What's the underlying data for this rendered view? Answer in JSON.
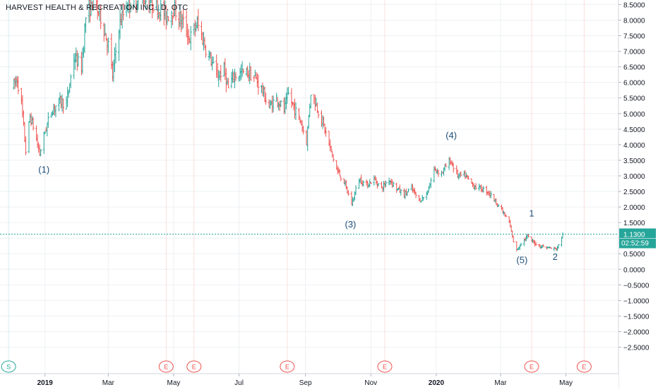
{
  "header": {
    "title": "HARVEST HEALTH & RECREATION INC., D, OTC"
  },
  "price_label": {
    "value": "1.1300",
    "countdown": "02:52:59",
    "color": "#26a69a"
  },
  "colors": {
    "up": "#26a69a",
    "down": "#ef5350",
    "grid": "#eef0f3",
    "axis_text": "#131722",
    "wave_text": "#1e4e79",
    "event_earnings": "#ef5350",
    "event_split": "#26a69a"
  },
  "events": [
    {
      "text": "S",
      "date": "2018-11-28",
      "kind": "split"
    },
    {
      "text": "E",
      "date": "2019-04-24",
      "kind": "earnings"
    },
    {
      "text": "E",
      "date": "2019-05-20",
      "kind": "earnings"
    },
    {
      "text": "E",
      "date": "2019-08-15",
      "kind": "earnings"
    },
    {
      "text": "E",
      "date": "2019-11-14",
      "kind": "earnings"
    },
    {
      "text": "E",
      "date": "2020-03-30",
      "kind": "earnings"
    },
    {
      "text": "E",
      "date": "2020-05-18",
      "kind": "earnings"
    }
  ],
  "chart_data": {
    "type": "bar",
    "style": "ohlc",
    "title": "HARVEST HEALTH & RECREATION INC., D, OTC",
    "y_ticks": [
      "8.5000",
      "8.0000",
      "7.5000",
      "7.0000",
      "6.5000",
      "6.0000",
      "5.5000",
      "5.0000",
      "4.5000",
      "4.0000",
      "3.5000",
      "3.0000",
      "2.5000",
      "2.0000",
      "1.5000",
      "1.0000",
      "0.5000",
      "0.0000",
      "−0.5000",
      "−1.0000",
      "−1.5000",
      "−2.0000",
      "−2.5000"
    ],
    "y_tick_values": [
      8.5,
      8,
      7.5,
      7,
      6.5,
      6,
      5.5,
      5,
      4.5,
      4,
      3.5,
      3,
      2.5,
      2,
      1.5,
      1,
      0.5,
      0,
      -0.5,
      -1,
      -1.5,
      -2,
      -2.5
    ],
    "ylim": [
      -2.85,
      8.6
    ],
    "x_ticks": [
      {
        "label": "2019",
        "date": "2019-01-01",
        "bold": true
      },
      {
        "label": "Mar",
        "date": "2019-03-01"
      },
      {
        "label": "May",
        "date": "2019-05-01"
      },
      {
        "label": "Jul",
        "date": "2019-07-01"
      },
      {
        "label": "Sep",
        "date": "2019-09-01"
      },
      {
        "label": "Nov",
        "date": "2019-11-01"
      },
      {
        "label": "2020",
        "date": "2020-01-01",
        "bold": true
      },
      {
        "label": "Mar",
        "date": "2020-03-01"
      },
      {
        "label": "May",
        "date": "2020-05-01"
      }
    ],
    "xlim": [
      "2018-11-20",
      "2020-06-19"
    ],
    "last_price": 1.13,
    "price_path": [
      [
        "2018-12-03",
        5.9
      ],
      [
        "2018-12-06",
        6.1
      ],
      [
        "2018-12-10",
        5.3
      ],
      [
        "2018-12-14",
        3.8
      ],
      [
        "2018-12-18",
        4.9
      ],
      [
        "2018-12-21",
        4.6
      ],
      [
        "2018-12-27",
        3.7
      ],
      [
        "2018-12-31",
        4.3
      ],
      [
        "2019-01-07",
        5.1
      ],
      [
        "2019-01-15",
        5.4
      ],
      [
        "2019-01-21",
        5.3
      ],
      [
        "2019-01-28",
        6.8
      ],
      [
        "2019-02-04",
        6.5
      ],
      [
        "2019-02-08",
        8.1
      ],
      [
        "2019-02-15",
        8.6
      ],
      [
        "2019-02-22",
        8.1
      ],
      [
        "2019-03-01",
        7.2
      ],
      [
        "2019-03-05",
        6.2
      ],
      [
        "2019-03-11",
        7.8
      ],
      [
        "2019-03-18",
        8.5
      ],
      [
        "2019-03-25",
        8.7
      ],
      [
        "2019-04-01",
        8.7
      ],
      [
        "2019-04-10",
        8.6
      ],
      [
        "2019-04-18",
        8.4
      ],
      [
        "2019-04-24",
        8.1
      ],
      [
        "2019-05-01",
        8.4
      ],
      [
        "2019-05-06",
        8.1
      ],
      [
        "2019-05-10",
        7.9
      ],
      [
        "2019-05-16",
        7.4
      ],
      [
        "2019-05-23",
        7.9
      ],
      [
        "2019-05-31",
        7.1
      ],
      [
        "2019-06-05",
        6.7
      ],
      [
        "2019-06-10",
        6.2
      ],
      [
        "2019-06-17",
        6.4
      ],
      [
        "2019-06-21",
        5.8
      ],
      [
        "2019-06-26",
        6.2
      ],
      [
        "2019-07-03",
        6.3
      ],
      [
        "2019-07-10",
        6.3
      ],
      [
        "2019-07-17",
        6.1
      ],
      [
        "2019-07-22",
        5.8
      ],
      [
        "2019-07-29",
        5.2
      ],
      [
        "2019-08-05",
        5.5
      ],
      [
        "2019-08-12",
        5.1
      ],
      [
        "2019-08-16",
        5.6
      ],
      [
        "2019-08-21",
        5.2
      ],
      [
        "2019-08-28",
        4.7
      ],
      [
        "2019-09-02",
        4.1
      ],
      [
        "2019-09-06",
        5.7
      ],
      [
        "2019-09-12",
        5.2
      ],
      [
        "2019-09-18",
        4.6
      ],
      [
        "2019-09-23",
        4.0
      ],
      [
        "2019-09-30",
        3.2
      ],
      [
        "2019-10-07",
        2.8
      ],
      [
        "2019-10-14",
        2.1
      ],
      [
        "2019-10-21",
        2.9
      ],
      [
        "2019-10-28",
        2.7
      ],
      [
        "2019-11-04",
        2.9
      ],
      [
        "2019-11-11",
        2.6
      ],
      [
        "2019-11-18",
        2.9
      ],
      [
        "2019-11-25",
        2.6
      ],
      [
        "2019-12-02",
        2.4
      ],
      [
        "2019-12-09",
        2.6
      ],
      [
        "2019-12-16",
        2.2
      ],
      [
        "2019-12-23",
        2.4
      ],
      [
        "2019-12-30",
        3.2
      ],
      [
        "2020-01-06",
        3.1
      ],
      [
        "2020-01-14",
        3.5
      ],
      [
        "2020-01-21",
        3.0
      ],
      [
        "2020-01-28",
        3.0
      ],
      [
        "2020-02-04",
        2.7
      ],
      [
        "2020-02-11",
        2.6
      ],
      [
        "2020-02-18",
        2.5
      ],
      [
        "2020-02-25",
        2.2
      ],
      [
        "2020-03-02",
        1.9
      ],
      [
        "2020-03-09",
        1.5
      ],
      [
        "2020-03-13",
        0.9
      ],
      [
        "2020-03-16",
        0.6
      ],
      [
        "2020-03-20",
        0.85
      ],
      [
        "2020-03-26",
        1.05
      ],
      [
        "2020-03-30",
        0.9
      ],
      [
        "2020-04-07",
        0.75
      ],
      [
        "2020-04-14",
        0.7
      ],
      [
        "2020-04-21",
        0.65
      ],
      [
        "2020-04-24",
        0.75
      ],
      [
        "2020-04-28",
        1.13
      ]
    ]
  },
  "wave_labels": [
    {
      "text": "(1)",
      "date": "2018-12-31",
      "price": 3.1
    },
    {
      "text": "(3)",
      "date": "2019-10-13",
      "price": 1.35
    },
    {
      "text": "(4)",
      "date": "2020-01-15",
      "price": 4.2
    },
    {
      "text": "(5)",
      "date": "2020-03-21",
      "price": 0.2
    },
    {
      "text": "1",
      "date": "2020-03-30",
      "price": 1.7
    },
    {
      "text": "2",
      "date": "2020-04-21",
      "price": 0.3
    }
  ]
}
